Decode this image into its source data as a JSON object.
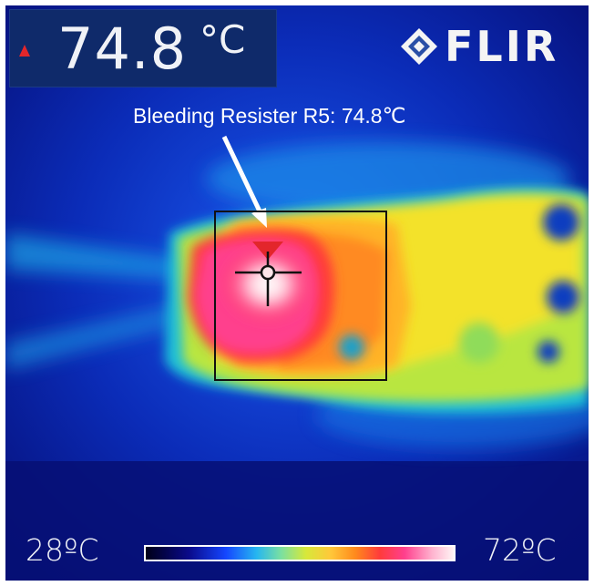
{
  "readout": {
    "value": "74.8",
    "unit": "°C",
    "arrow_color": "#e3262b"
  },
  "brand": {
    "logo_text": "FLIR",
    "icon": "flir-diamond-icon"
  },
  "annotation": {
    "text": "Bleeding Resister R5: 74.8℃",
    "arrow_icon": "white-pointer-arrow"
  },
  "scale": {
    "min_label": "28ºC",
    "max_label": "72ºC"
  },
  "colors": {
    "background": "#07107a",
    "hot_spot": "#ffffff",
    "marker": "#e3262b"
  }
}
